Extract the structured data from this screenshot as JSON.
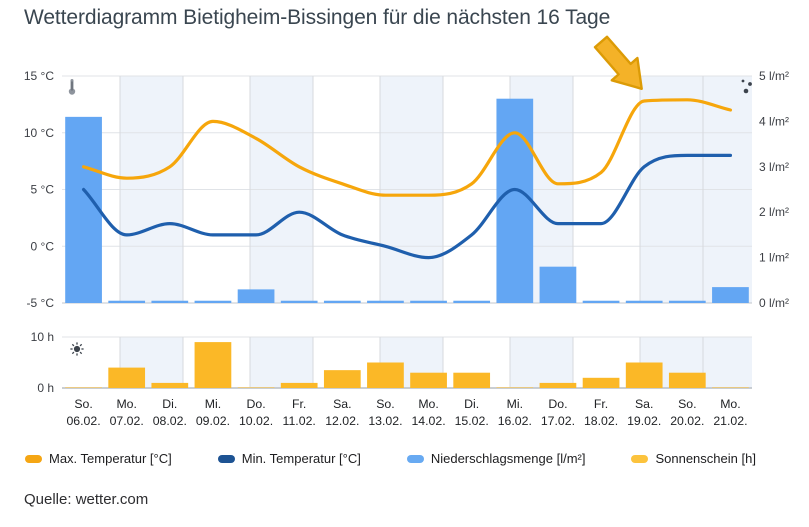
{
  "title": "Wetterdiagramm Bietigheim-Bissingen für die nächsten 16 Tage",
  "source": "Quelle: wetter.com",
  "colors": {
    "max_temp": "#f6a60b",
    "min_temp": "#1f5fad",
    "precipitation": "#63a6f3",
    "sunshine": "#fbb827",
    "sunshine_legend": "#fcc33d",
    "stripe": "#eef3fa",
    "grid": "#e0e3e7",
    "grid_strong": "#c3c7cc",
    "grid_vertical": "#d7dade",
    "baseline_lower": "#b9bec4",
    "axis_text": "#3b3e44",
    "day_text": "#212326",
    "icon_gray": "#8e949d",
    "icon_dark": "#3c434c",
    "arrow_fill": "#f4b228",
    "arrow_stroke": "#dc9b06"
  },
  "legend": [
    {
      "id": "max-temp",
      "label": "Max. Temperatur [°C]",
      "color": "#f5a614"
    },
    {
      "id": "min-temp",
      "label": "Min. Temperatur [°C]",
      "color": "#1d5393"
    },
    {
      "id": "precipitation",
      "label": "Niederschlagsmenge [l/m²]",
      "color": "#68aaf2"
    },
    {
      "id": "sunshine",
      "label": "Sonnenschein [h]",
      "color": "#fcc33d"
    }
  ],
  "chart_data": {
    "type": "combo",
    "title": "Wetterdiagramm Bietigheim-Bissingen für die nächsten 16 Tage",
    "categories_day": [
      "So.",
      "Mo.",
      "Di.",
      "Mi.",
      "Do.",
      "Fr.",
      "Sa.",
      "So.",
      "Mo.",
      "Di.",
      "Mi.",
      "Do.",
      "Fr.",
      "Sa.",
      "So.",
      "Mo."
    ],
    "categories_date": [
      "06.02.",
      "07.02.",
      "08.02.",
      "09.02.",
      "10.02.",
      "11.02.",
      "12.02.",
      "13.02.",
      "14.02.",
      "15.02.",
      "16.02.",
      "17.02.",
      "18.02.",
      "19.02.",
      "20.02.",
      "21.02."
    ],
    "temperature_axis": {
      "ticks": [
        "15 °C",
        "10 °C",
        "5 °C",
        "0 °C",
        "-5 °C"
      ],
      "tick_values": [
        15,
        10,
        5,
        0,
        -5
      ],
      "min": -5,
      "max": 15,
      "side": "left"
    },
    "precipitation_axis": {
      "ticks": [
        "5 l/m²",
        "4 l/m²",
        "3 l/m²",
        "2 l/m²",
        "1 l/m²",
        "0 l/m²"
      ],
      "tick_values": [
        5,
        4,
        3,
        2,
        1,
        0
      ],
      "min": 0,
      "max": 5,
      "side": "right"
    },
    "sunshine_axis": {
      "ticks": [
        "10 h",
        "0 h"
      ],
      "tick_values": [
        10,
        0
      ],
      "min": 0,
      "max": 10,
      "side": "left"
    },
    "series": [
      {
        "name": "Max. Temperatur [°C]",
        "type": "line",
        "panel": "main",
        "axis": "temperature",
        "values": [
          7,
          6,
          7,
          11,
          9.5,
          7,
          5.5,
          4.5,
          4.5,
          5.5,
          10,
          5.5,
          6.5,
          12.8,
          12.9,
          12
        ]
      },
      {
        "name": "Min. Temperatur [°C]",
        "type": "line",
        "panel": "main",
        "axis": "temperature",
        "values": [
          5,
          1,
          2,
          1,
          1,
          3,
          1,
          0,
          -1,
          1,
          5,
          2,
          2,
          7,
          8,
          8
        ]
      },
      {
        "name": "Niederschlagsmenge [l/m²]",
        "type": "bar",
        "panel": "main",
        "axis": "precipitation",
        "values": [
          4.1,
          0.05,
          0.05,
          0.05,
          0.3,
          0.05,
          0.05,
          0.05,
          0.05,
          0.05,
          4.5,
          0.8,
          0.05,
          0.05,
          0.05,
          0.35
        ]
      },
      {
        "name": "Sonnenschein [h]",
        "type": "bar",
        "panel": "lower",
        "axis": "sunshine",
        "values": [
          0.1,
          4,
          1,
          9,
          0.1,
          1,
          3.5,
          5,
          3,
          3,
          0.1,
          1,
          2,
          5,
          3,
          0.1
        ]
      }
    ],
    "annotation": {
      "shape": "arrow",
      "direction": "down-right",
      "target": "Max. Temperatur Plateau 19.02.–21.02."
    },
    "grid": true,
    "legend_position": "bottom"
  }
}
